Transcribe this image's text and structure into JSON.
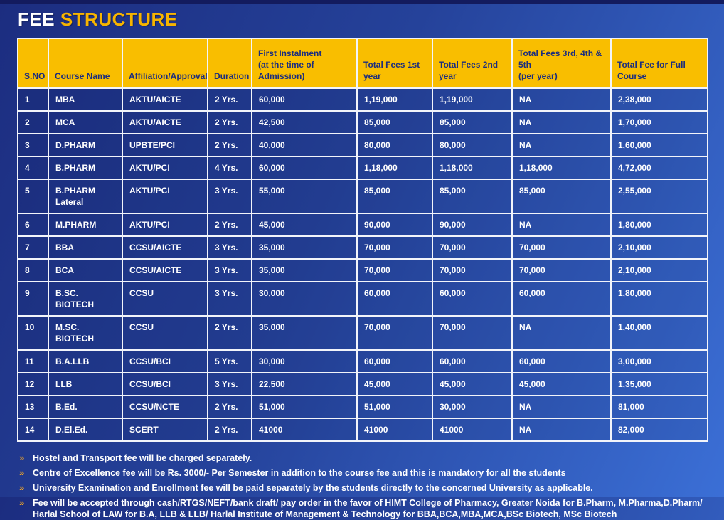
{
  "title": {
    "part1": "FEE",
    "part2": "STRUCTURE"
  },
  "colors": {
    "header_gold": "#F9BE00",
    "header_text_navy": "#1B2D7E",
    "background_top_left": "#1C2D80",
    "background_bottom_right": "#3B6FD6",
    "cell_text": "#FFFFFF",
    "note_bullet_orange": "#F7A823"
  },
  "table": {
    "columns": [
      "S.NO",
      "Course Name",
      "Affiliation/Approval",
      "Duration",
      "First Instalment\n(at the time of\nAdmission)",
      "Total Fees 1st\nyear",
      "Total Fees 2nd\nyear",
      "Total Fees 3rd, 4th &\n5th\n(per year)",
      "Total Fee for Full\nCourse"
    ],
    "rows": [
      [
        "1",
        "MBA",
        "AKTU/AICTE",
        "2 Yrs.",
        "60,000",
        "1,19,000",
        "1,19,000",
        "NA",
        "2,38,000"
      ],
      [
        "2",
        "MCA",
        "AKTU/AICTE",
        "2 Yrs.",
        "42,500",
        "85,000",
        "85,000",
        "NA",
        "1,70,000"
      ],
      [
        "3",
        "D.PHARM",
        "UPBTE/PCI",
        "2 Yrs.",
        "40,000",
        "80,000",
        "80,000",
        "NA",
        "1,60,000"
      ],
      [
        "4",
        "B.PHARM",
        "AKTU/PCI",
        "4 Yrs.",
        "60,000",
        "1,18,000",
        "1,18,000",
        "1,18,000",
        "4,72,000"
      ],
      [
        "5",
        "B.PHARM\nLateral",
        "AKTU/PCI",
        "3 Yrs.",
        "55,000",
        "85,000",
        "85,000",
        "85,000",
        "2,55,000"
      ],
      [
        "6",
        "M.PHARM",
        "AKTU/PCI",
        "2 Yrs.",
        "45,000",
        "90,000",
        "90,000",
        "NA",
        "1,80,000"
      ],
      [
        "7",
        "BBA",
        "CCSU/AICTE",
        "3 Yrs.",
        "35,000",
        "70,000",
        "70,000",
        "70,000",
        "2,10,000"
      ],
      [
        "8",
        "BCA",
        "CCSU/AICTE",
        "3 Yrs.",
        "35,000",
        "70,000",
        "70,000",
        "70,000",
        "2,10,000"
      ],
      [
        "9",
        "B.SC. BIOTECH",
        "CCSU",
        "3 Yrs.",
        "30,000",
        "60,000",
        "60,000",
        "60,000",
        "1,80,000"
      ],
      [
        "10",
        "M.SC.\nBIOTECH",
        "CCSU",
        "2 Yrs.",
        "35,000",
        "70,000",
        "70,000",
        "NA",
        "1,40,000"
      ],
      [
        "11",
        "B.A.LLB",
        "CCSU/BCI",
        "5 Yrs.",
        "30,000",
        "60,000",
        "60,000",
        "60,000",
        "3,00,000"
      ],
      [
        "12",
        "LLB",
        "CCSU/BCI",
        "3 Yrs.",
        "22,500",
        "45,000",
        "45,000",
        "45,000",
        "1,35,000"
      ],
      [
        "13",
        "B.Ed.",
        "CCSU/NCTE",
        "2 Yrs.",
        "51,000",
        "51,000",
        "30,000",
        "NA",
        "81,000"
      ],
      [
        "14",
        "D.El.Ed.",
        "SCERT",
        "2 Yrs.",
        "41000",
        "41000",
        "41000",
        "NA",
        "82,000"
      ]
    ]
  },
  "notes": {
    "bullet": "»",
    "items": [
      "Hostel and Transport fee will be charged separately.",
      "Centre of Excellence fee will be Rs. 3000/- Per Semester in addition to the course fee and this is mandatory for all the students",
      "University Examination and Enrollment fee will be paid separately by the students directly to the concerned University as applicable.",
      "Fee will be accepted through cash/RTGS/NEFT/bank draft/ pay order in the favor of HIMT College of Pharmacy, Greater Noida for B.Pharm, M.Pharma,D.Pharm/ Harlal School of LAW for B.A, LLB & LLB/ Harlal Institute of Management & Technology for BBA,BCA,MBA,MCA,BSc Biotech, MSc Biotech"
    ]
  }
}
